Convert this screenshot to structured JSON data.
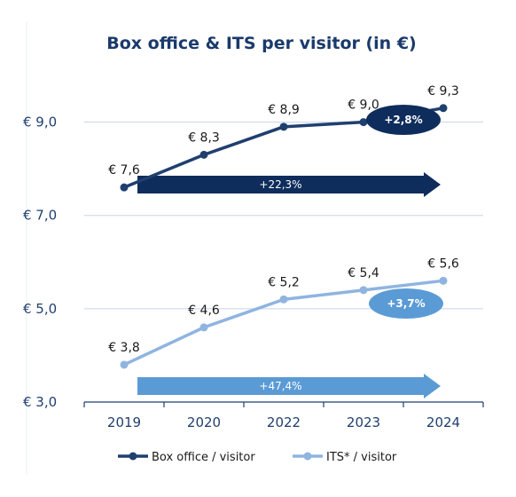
{
  "chart_data": {
    "type": "line",
    "title": "Box office & ITS per visitor (in €)",
    "categories": [
      "2019",
      "2020",
      "2022",
      "2023",
      "2024"
    ],
    "y_ticks": [
      "€ 3,0",
      "€ 5,0",
      "€ 7,0",
      "€ 9,0"
    ],
    "ylim": [
      3.0,
      10.0
    ],
    "grid": true,
    "legend_position": "bottom",
    "series": [
      {
        "name": "Box office / visitor",
        "values": [
          7.6,
          8.3,
          8.9,
          9.0,
          9.3
        ],
        "labels": [
          "€ 7,6",
          "€ 8,3",
          "€ 8,9",
          "€ 9,0",
          "€ 9,3"
        ],
        "color": "#1f3f6f",
        "growth_badge": "+2,8%",
        "growth_arrow": "+22,3%"
      },
      {
        "name": "ITS* / visitor",
        "values": [
          3.8,
          4.6,
          5.2,
          5.4,
          5.6
        ],
        "labels": [
          "€ 3,8",
          "€ 4,6",
          "€ 5,2",
          "€ 5,4",
          "€ 5,6"
        ],
        "color": "#8fb4e0",
        "growth_badge": "+3,7%",
        "growth_arrow": "+47,4%"
      }
    ],
    "colors": {
      "badge_dark": "#0f2d5c",
      "badge_light": "#5b9bd5",
      "arrow_dark": "#0f2d5c",
      "arrow_light": "#5b9bd5",
      "grid": "#c5d5ea",
      "axis": "#1f3f6f"
    }
  }
}
